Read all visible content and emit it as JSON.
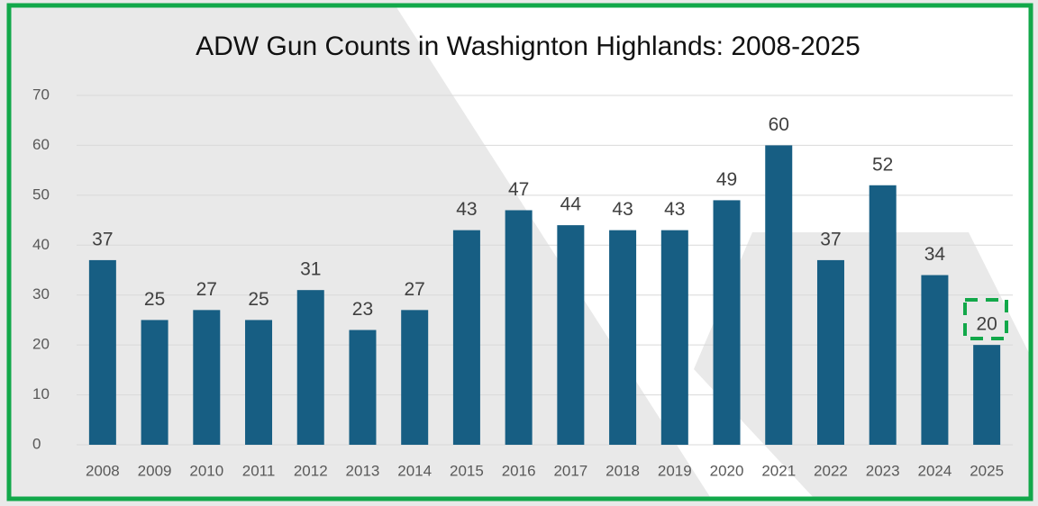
{
  "chart_data": {
    "type": "bar",
    "title": "ADW Gun Counts in Washignton Highlands: 2008-2025",
    "categories": [
      "2008",
      "2009",
      "2010",
      "2011",
      "2012",
      "2013",
      "2014",
      "2015",
      "2016",
      "2017",
      "2018",
      "2019",
      "2020",
      "2021",
      "2022",
      "2023",
      "2024",
      "2025"
    ],
    "values": [
      37,
      25,
      27,
      25,
      31,
      23,
      27,
      43,
      47,
      44,
      43,
      43,
      49,
      60,
      37,
      52,
      34,
      20
    ],
    "color": "#175e83",
    "ylim": [
      0,
      70
    ],
    "yticks": [
      0,
      10,
      20,
      30,
      40,
      50,
      60,
      70
    ],
    "grid": true
  }
}
